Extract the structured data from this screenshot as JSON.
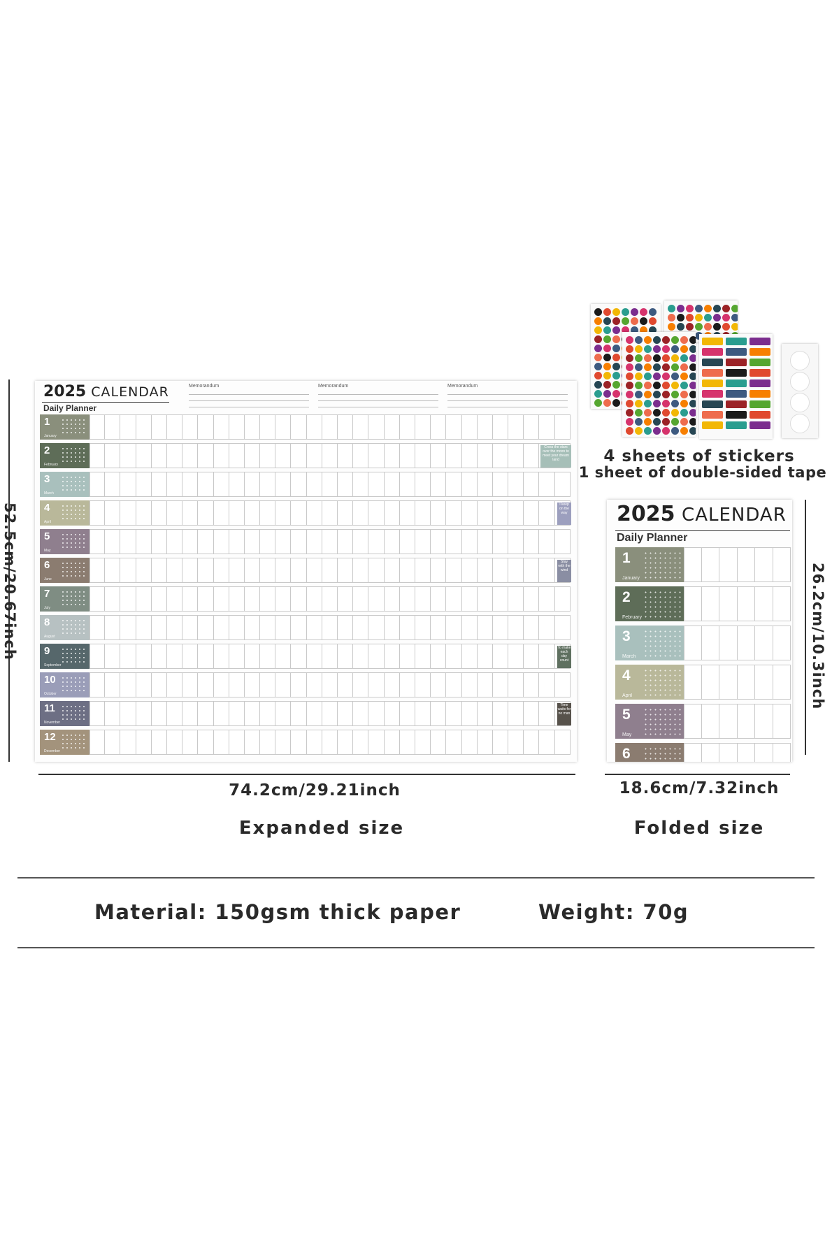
{
  "calendar": {
    "year": "2025",
    "title_word": "CALENDAR",
    "subtitle": "Daily Planner",
    "memo_label": "Memorandum",
    "months": [
      {
        "num": "1",
        "name": "January",
        "color": "#8a8f7c"
      },
      {
        "num": "2",
        "name": "February",
        "color": "#5e6d58"
      },
      {
        "num": "3",
        "name": "March",
        "color": "#a9c0bd"
      },
      {
        "num": "4",
        "name": "April",
        "color": "#b9b89a"
      },
      {
        "num": "5",
        "name": "May",
        "color": "#8f7f8e"
      },
      {
        "num": "6",
        "name": "June",
        "color": "#8b7c70"
      },
      {
        "num": "7",
        "name": "July",
        "color": "#7f8d83"
      },
      {
        "num": "8",
        "name": "August",
        "color": "#b7c1c2"
      },
      {
        "num": "9",
        "name": "September",
        "color": "#56676b"
      },
      {
        "num": "10",
        "name": "October",
        "color": "#9a9db8"
      },
      {
        "num": "11",
        "name": "November",
        "color": "#6d6f84"
      },
      {
        "num": "12",
        "name": "December",
        "color": "#a3937c"
      }
    ],
    "notes": [
      {
        "row": 1,
        "text": "Cross the stars over the moon to meet your dream land",
        "color": "#a6bfb8"
      },
      {
        "row": 3,
        "text": "I keep on the way",
        "color": "#9c9fbe"
      },
      {
        "row": 5,
        "text": "Stay with the wind",
        "color": "#8a8ea3"
      },
      {
        "row": 8,
        "text": "To make each day count",
        "color": "#5f7060"
      },
      {
        "row": 10,
        "text": "Time waits for no man",
        "color": "#57524b"
      }
    ]
  },
  "stickers": {
    "caption_line1": "4 sheets of stickers",
    "caption_line2": "1 sheet of double-sided tape"
  },
  "dimensions": {
    "expanded_height": "52.5cm/20.67inch",
    "expanded_width": "74.2cm/29.21inch",
    "expanded_label": "Expanded size",
    "folded_height": "26.2cm/10.3inch",
    "folded_width": "18.6cm/7.32inch",
    "folded_label": "Folded size"
  },
  "specs": {
    "material": "Material: 150gsm thick paper",
    "weight": "Weight: 70g"
  },
  "sticker_colors": [
    "#1b1b1b",
    "#e0492f",
    "#f2b705",
    "#2a9d8f",
    "#7b2d8e",
    "#d6336c",
    "#3d5a80",
    "#f77f00",
    "#264653",
    "#9b2226",
    "#55a630",
    "#ee6c4d"
  ]
}
